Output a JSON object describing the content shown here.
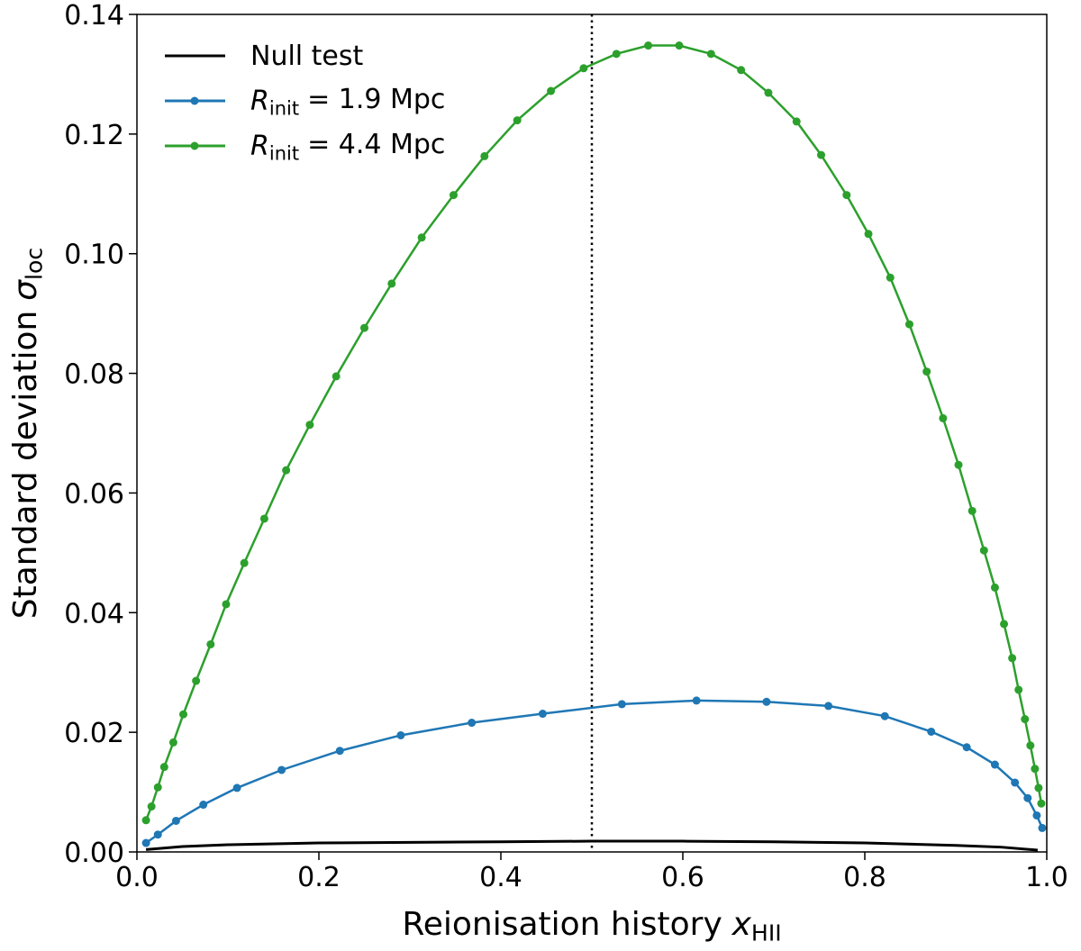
{
  "chart_data": {
    "type": "line",
    "xlabel": {
      "text": "Reionisation history",
      "symbol": "x",
      "subscript": "HII"
    },
    "ylabel": {
      "text": "Standard deviation",
      "symbol": "σ",
      "subscript": "loc"
    },
    "xlim": [
      0,
      1
    ],
    "xticks": [
      {
        "value": 0,
        "label": "0.0"
      },
      0.2,
      0.4,
      0.6,
      0.8,
      {
        "value": 1,
        "label": "1.0"
      }
    ],
    "ylim": [
      0,
      0.14
    ],
    "yticks": [
      {
        "value": 0,
        "label": "0.00"
      },
      0.02,
      0.04,
      0.06,
      0.08,
      {
        "value": 0.1,
        "label": "0.10"
      },
      0.12,
      0.14
    ],
    "vline": 0.5,
    "legend": "upper left",
    "series": [
      {
        "name": "Null test",
        "color": "#000000",
        "marker": false,
        "x": [
          0.01,
          0.05,
          0.1,
          0.2,
          0.3,
          0.4,
          0.5,
          0.6,
          0.7,
          0.8,
          0.9,
          0.95,
          0.99
        ],
        "values": [
          0.0004,
          0.0009,
          0.0012,
          0.0015,
          0.0016,
          0.0017,
          0.0018,
          0.0018,
          0.0017,
          0.0015,
          0.0011,
          0.0008,
          0.0003
        ]
      },
      {
        "name": {
          "symbol": "R",
          "subscript": "init",
          "text": "= 1.9 Mpc"
        },
        "color": "#1f77b4",
        "marker": true,
        "x": [
          0.01,
          0.023,
          0.043,
          0.073,
          0.11,
          0.159,
          0.223,
          0.29,
          0.368,
          0.446,
          0.533,
          0.615,
          0.692,
          0.76,
          0.822,
          0.873,
          0.912,
          0.943,
          0.965,
          0.979,
          0.989,
          0.995
        ],
        "values": [
          0.0015,
          0.0029,
          0.0052,
          0.0079,
          0.0107,
          0.0137,
          0.0169,
          0.0195,
          0.0216,
          0.0231,
          0.0247,
          0.0253,
          0.0251,
          0.0244,
          0.0227,
          0.0201,
          0.0175,
          0.0146,
          0.0116,
          0.009,
          0.0061,
          0.004
        ]
      },
      {
        "name": {
          "symbol": "R",
          "subscript": "init",
          "text": "= 4.4 Mpc"
        },
        "color": "#2ca02c",
        "marker": true,
        "x": [
          0.01,
          0.016,
          0.023,
          0.03,
          0.04,
          0.051,
          0.065,
          0.081,
          0.098,
          0.118,
          0.14,
          0.164,
          0.19,
          0.219,
          0.25,
          0.28,
          0.313,
          0.348,
          0.382,
          0.418,
          0.455,
          0.491,
          0.527,
          0.562,
          0.596,
          0.631,
          0.664,
          0.694,
          0.725,
          0.752,
          0.78,
          0.804,
          0.828,
          0.849,
          0.868,
          0.886,
          0.903,
          0.918,
          0.931,
          0.943,
          0.953,
          0.962,
          0.969,
          0.976,
          0.982,
          0.987,
          0.991,
          0.994
        ],
        "values": [
          0.0053,
          0.0076,
          0.0108,
          0.0142,
          0.0183,
          0.023,
          0.0286,
          0.0347,
          0.0414,
          0.0483,
          0.0557,
          0.0638,
          0.0714,
          0.0795,
          0.0876,
          0.095,
          0.1027,
          0.1098,
          0.1163,
          0.1223,
          0.1272,
          0.131,
          0.1334,
          0.1348,
          0.1348,
          0.1334,
          0.1307,
          0.1269,
          0.1221,
          0.1165,
          0.1098,
          0.1033,
          0.096,
          0.0882,
          0.0803,
          0.0725,
          0.0647,
          0.057,
          0.0504,
          0.0442,
          0.0381,
          0.0324,
          0.0271,
          0.0222,
          0.0178,
          0.0139,
          0.0107,
          0.0081
        ]
      }
    ]
  }
}
